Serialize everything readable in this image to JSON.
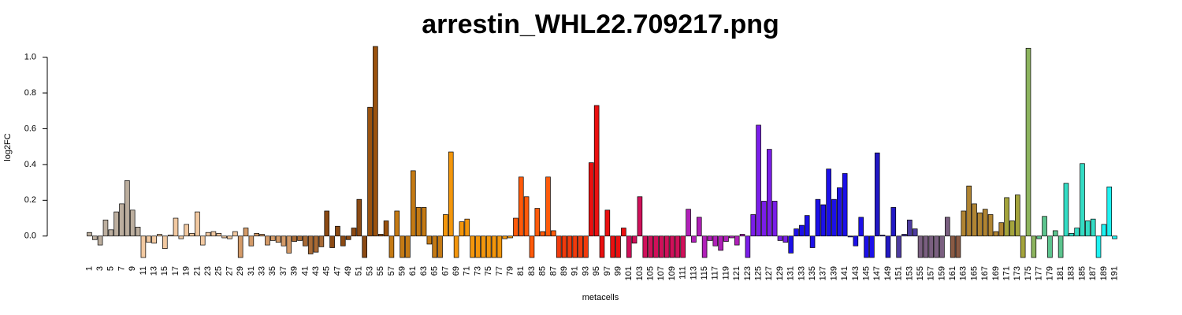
{
  "chart_data": {
    "type": "bar",
    "title": "arrestin_WHL22.709217.png",
    "x_label": "metacells",
    "y_label": "log2FC",
    "categories": [
      "1",
      null,
      "3",
      null,
      "5",
      null,
      "7",
      null,
      "9",
      null,
      "11",
      null,
      "13",
      null,
      "15",
      null,
      "17",
      null,
      "19",
      null,
      "21",
      null,
      "23",
      null,
      "25",
      null,
      "27",
      null,
      "29",
      null,
      "31",
      null,
      "33",
      null,
      "35",
      null,
      "37",
      null,
      "39",
      null,
      "41",
      null,
      "43",
      null,
      "45",
      null,
      "47",
      null,
      "49",
      null,
      "51",
      null,
      "53",
      null,
      "55",
      null,
      "57",
      null,
      "59",
      null,
      "61",
      null,
      "63",
      null,
      "65",
      null,
      "67",
      null,
      "69",
      null,
      "71",
      null,
      "73",
      null,
      "75",
      null,
      "77",
      null,
      "79",
      null,
      "81",
      null,
      "83",
      null,
      "85",
      null,
      "87",
      null,
      "89",
      null,
      "91",
      null,
      "93",
      null,
      "95",
      null,
      "97",
      null,
      "99",
      null,
      "101",
      null,
      "103",
      null,
      "105",
      null,
      "107",
      null,
      "109",
      null,
      "111",
      null,
      "113",
      null,
      "115",
      null,
      "117",
      null,
      "119",
      null,
      "121",
      null,
      "123",
      null,
      "125",
      null,
      "127",
      null,
      "129",
      null,
      "131",
      null,
      "133",
      null,
      "135",
      null,
      "137",
      null,
      "139",
      null,
      "141",
      null,
      "143",
      null,
      "145",
      null,
      "147",
      null,
      "149",
      null,
      "151",
      null,
      "153",
      null,
      "155",
      null,
      "157",
      null,
      "159",
      null,
      "161",
      null,
      "163",
      null,
      "165",
      null,
      "167",
      null,
      "169",
      null,
      "171",
      null,
      "173",
      null,
      "175",
      null,
      "177",
      null,
      "179",
      null,
      "181",
      null,
      "183",
      null,
      "185",
      null,
      "187",
      null,
      "189",
      null,
      "191"
    ],
    "values": [
      0.02,
      -0.02,
      -0.05,
      0.09,
      0.035,
      0.135,
      0.18,
      0.31,
      0.145,
      0.05,
      -0.12,
      -0.035,
      -0.04,
      0.01,
      -0.07,
      0.005,
      0.1,
      -0.015,
      0.065,
      0.015,
      0.135,
      -0.05,
      0.02,
      0.025,
      0.015,
      -0.01,
      -0.015,
      0.025,
      -0.12,
      0.045,
      -0.055,
      0.015,
      0.01,
      -0.05,
      -0.025,
      -0.035,
      -0.055,
      -0.095,
      -0.03,
      -0.025,
      -0.055,
      -0.1,
      -0.09,
      -0.06,
      0.14,
      -0.065,
      0.055,
      -0.055,
      -0.02,
      0.045,
      0.205,
      -0.12,
      0.72,
      1.06,
      0.01,
      0.085,
      -0.12,
      0.14,
      -0.12,
      -0.12,
      0.365,
      0.16,
      0.16,
      -0.045,
      -0.12,
      -0.12,
      0.12,
      0.47,
      -0.12,
      0.08,
      0.095,
      -0.12,
      -0.12,
      -0.12,
      -0.12,
      -0.12,
      -0.12,
      -0.015,
      -0.01,
      0.1,
      0.33,
      0.22,
      -0.12,
      0.155,
      0.025,
      0.33,
      0.03,
      -0.12,
      -0.12,
      -0.12,
      -0.12,
      -0.12,
      -0.12,
      0.41,
      0.73,
      -0.12,
      0.145,
      -0.12,
      -0.12,
      0.045,
      -0.12,
      -0.04,
      0.22,
      -0.12,
      -0.12,
      -0.12,
      -0.12,
      -0.12,
      -0.12,
      -0.12,
      -0.12,
      0.15,
      -0.035,
      0.105,
      -0.12,
      -0.025,
      -0.055,
      -0.08,
      -0.03,
      -0.01,
      -0.05,
      0.01,
      -0.12,
      0.12,
      0.62,
      0.195,
      0.485,
      0.195,
      -0.025,
      -0.035,
      -0.095,
      0.04,
      0.06,
      0.115,
      -0.065,
      0.205,
      0.175,
      0.375,
      0.205,
      0.27,
      0.35,
      -0.005,
      -0.055,
      0.105,
      -0.12,
      -0.12,
      0.465,
      0.005,
      -0.12,
      0.16,
      -0.12,
      0.01,
      0.09,
      0.04,
      -0.12,
      -0.12,
      -0.12,
      -0.12,
      -0.12,
      0.105,
      -0.12,
      -0.12,
      0.14,
      0.28,
      0.18,
      0.13,
      0.15,
      0.12,
      0.025,
      0.075,
      0.215,
      0.085,
      0.23,
      -0.12,
      1.05,
      -0.12,
      -0.015,
      0.11,
      -0.12,
      0.03,
      -0.12,
      0.295,
      0.015,
      0.045,
      0.405,
      0.085,
      0.095,
      -0.12,
      0.065,
      0.275,
      -0.015
    ],
    "colors": [
      "#bcae9e",
      "#bcae9e",
      "#bcae9e",
      "#bcae9e",
      "#bcae9e",
      "#bcae9e",
      "#bcae9e",
      "#bcae9e",
      "#bcae9e",
      "#bcae9e",
      "#f2c9a1",
      "#f2c9a1",
      "#f2c9a1",
      "#f2c9a1",
      "#f2c9a1",
      "#f2c9a1",
      "#f2c9a1",
      "#f2c9a1",
      "#f2c9a1",
      "#f2c9a1",
      "#f2c9a1",
      "#f2c9a1",
      "#f2c9a1",
      "#f2c9a1",
      "#f2c9a1",
      "#f2c9a1",
      "#f2c9a1",
      "#f2c9a1",
      "#d39a68",
      "#d39a68",
      "#d39a68",
      "#d39a68",
      "#d39a68",
      "#d39a68",
      "#d39a68",
      "#d39a68",
      "#d39a68",
      "#d39a68",
      "#a86a35",
      "#a86a35",
      "#a86a35",
      "#a86a35",
      "#a86a35",
      "#a86a35",
      "#8b4a14",
      "#8b4a14",
      "#8b4a14",
      "#8b4a14",
      "#8b4a14",
      "#8b4a14",
      "#8b4a14",
      "#8b4a14",
      "#9a520e",
      "#9a520e",
      "#9a520e",
      "#9a520e",
      "#c47a14",
      "#c47a14",
      "#c47a14",
      "#c47a14",
      "#c47a14",
      "#c47a14",
      "#c47a14",
      "#c47a14",
      "#c47a14",
      "#c47a14",
      "#f3960c",
      "#f3960c",
      "#f3960c",
      "#f3960c",
      "#f3960c",
      "#f3960c",
      "#f3960c",
      "#f3960c",
      "#f3960c",
      "#f3960c",
      "#f3960c",
      "#f3960c",
      "#f3960c",
      "#ff5a0a",
      "#ff5a0a",
      "#ff5a0a",
      "#ff5a0a",
      "#ff5a0a",
      "#ff5a0a",
      "#ff5a0a",
      "#ff5a0a",
      "#f03a0c",
      "#f03a0c",
      "#f03a0c",
      "#f03a0c",
      "#f03a0c",
      "#f03a0c",
      "#ea1010",
      "#ea1010",
      "#ea1010",
      "#ea1010",
      "#ea1010",
      "#ea1010",
      "#ea1010",
      "#d0105a",
      "#d0105a",
      "#d0105a",
      "#d0105a",
      "#d0105a",
      "#d0105a",
      "#d0105a",
      "#d0105a",
      "#d0105a",
      "#d0105a",
      "#d0105a",
      "#b020b8",
      "#b020b8",
      "#b020b8",
      "#b020b8",
      "#b020b8",
      "#b020b8",
      "#b020b8",
      "#b020b8",
      "#b020b8",
      "#b020b8",
      "#b020b8",
      "#7a1ee8",
      "#7a1ee8",
      "#7a1ee8",
      "#7a1ee8",
      "#7a1ee8",
      "#7a1ee8",
      "#7a1ee8",
      "#7a1ee8",
      "#1c10e8",
      "#1c10e8",
      "#1c10e8",
      "#1c10e8",
      "#1c10e8",
      "#1c10e8",
      "#1c10e8",
      "#1c10e8",
      "#1c10e8",
      "#1c10e8",
      "#1c10e8",
      "#1c10e8",
      "#1c10e8",
      "#1c10e8",
      "#1c10e8",
      "#1c10e8",
      "#2218c4",
      "#2218c4",
      "#2218c4",
      "#2218c4",
      "#4e3ca0",
      "#4e3ca0",
      "#4e3ca0",
      "#4e3ca0",
      "#7a5f80",
      "#7a5f80",
      "#7a5f80",
      "#7a5f80",
      "#7a5f80",
      "#7a5f80",
      "#8a5a44",
      "#8a5a44",
      "#b08432",
      "#b08432",
      "#b08432",
      "#b08432",
      "#b08432",
      "#b08432",
      "#b08432",
      "#b08432",
      "#a4a43c",
      "#a4a43c",
      "#a4a43c",
      "#a4a43c",
      "#8cb45e",
      "#8cb45e",
      "#5cc48e",
      "#5cc48e",
      "#5cc48e",
      "#5cc48e",
      "#5cc48e",
      "#34dcc4",
      "#34dcc4",
      "#34dcc4",
      "#34dcc4",
      "#34dcc4",
      "#34dcc4",
      "#1ef2f2",
      "#1ef2f2",
      "#1ef2f2",
      "#1ef2f2"
    ],
    "ylim": [
      -0.12,
      1.06
    ],
    "yticks": [
      {
        "value": 0,
        "label": "0.0"
      },
      0.2,
      0.4,
      0.6,
      0.8,
      {
        "value": 1,
        "label": "1.0"
      }
    ]
  }
}
